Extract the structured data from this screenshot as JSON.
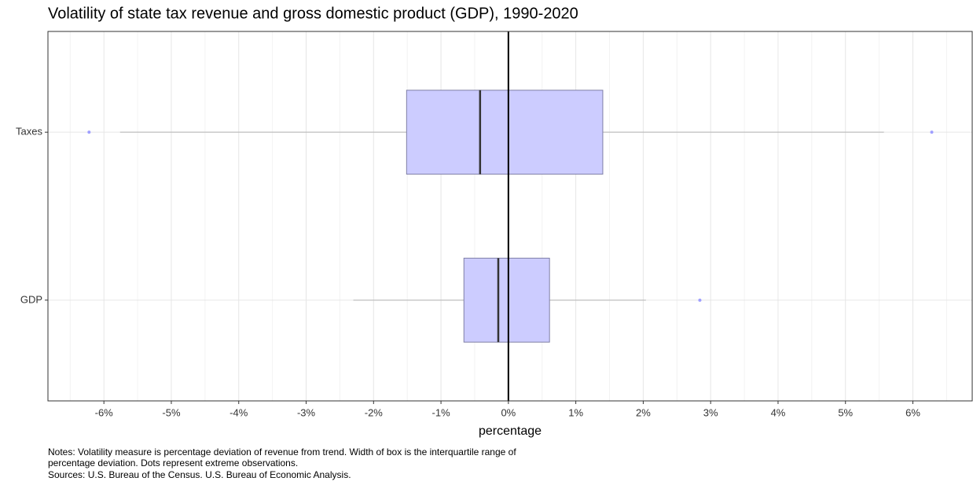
{
  "chart_data": {
    "type": "boxplot",
    "title": "Volatility of state tax revenue and gross domestic product (GDP), 1990-2020",
    "xlabel": "percentage",
    "notes": [
      "Notes: Volatility measure is percentage deviation of revenue from trend. Width of box is the interquartile range of",
      "percentage deviation. Dots represent extreme observations.",
      "Sources: U.S. Bureau of the Census. U.S. Bureau of Economic Analysis."
    ],
    "categories": [
      "Taxes",
      "GDP"
    ],
    "boxes": [
      {
        "min": -5.76,
        "q1": -1.51,
        "median": -0.42,
        "q3": 1.4,
        "max": 5.57,
        "outliers": [
          -6.22,
          6.28
        ]
      },
      {
        "min": -2.3,
        "q1": -0.66,
        "median": -0.15,
        "q3": 0.61,
        "max": 2.04,
        "outliers": [
          2.84
        ]
      }
    ],
    "box_color": "#ccccff",
    "outlier_color": "#9f9fff",
    "reference_line": 0,
    "xlim": [
      -6.83,
      6.88
    ],
    "xticks": [
      {
        "value": -6,
        "label": "-6%"
      },
      {
        "value": -5,
        "label": "-5%"
      },
      {
        "value": -4,
        "label": "-4%"
      },
      {
        "value": -3,
        "label": "-3%"
      },
      {
        "value": -2,
        "label": "-2%"
      },
      {
        "value": -1,
        "label": "-1%"
      },
      {
        "value": 0,
        "label": "0%"
      },
      {
        "value": 1,
        "label": "1%"
      },
      {
        "value": 2,
        "label": "2%"
      },
      {
        "value": 3,
        "label": "3%"
      },
      {
        "value": 4,
        "label": "4%"
      },
      {
        "value": 5,
        "label": "5%"
      },
      {
        "value": 6,
        "label": "6%"
      }
    ],
    "minor_xticks": [
      -6.5,
      -5.5,
      -4.5,
      -3.5,
      -2.5,
      -1.5,
      -0.5,
      0.5,
      1.5,
      2.5,
      3.5,
      4.5,
      5.5,
      6.5
    ],
    "grid": true
  }
}
